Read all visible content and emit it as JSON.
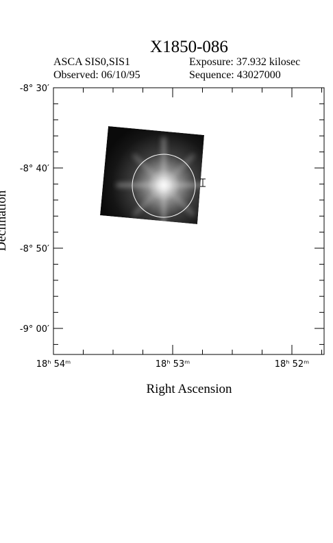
{
  "header": {
    "title": "X1850-086",
    "instrument": "ASCA SIS0,SIS1",
    "exposure": "Exposure: 37.932 kilosec",
    "observed": "Observed: 06/10/95",
    "sequence": "Sequence: 43027000"
  },
  "axes": {
    "x_label": "Right Ascension",
    "y_label": "Declination",
    "x_ticks": [
      "18ʰ 54ᵐ",
      "18ʰ 53ᵐ",
      "18ʰ 52ᵐ"
    ],
    "y_ticks": [
      "-8° 30′",
      "-8° 40′",
      "-8° 50′",
      "-9° 00′"
    ]
  }
}
